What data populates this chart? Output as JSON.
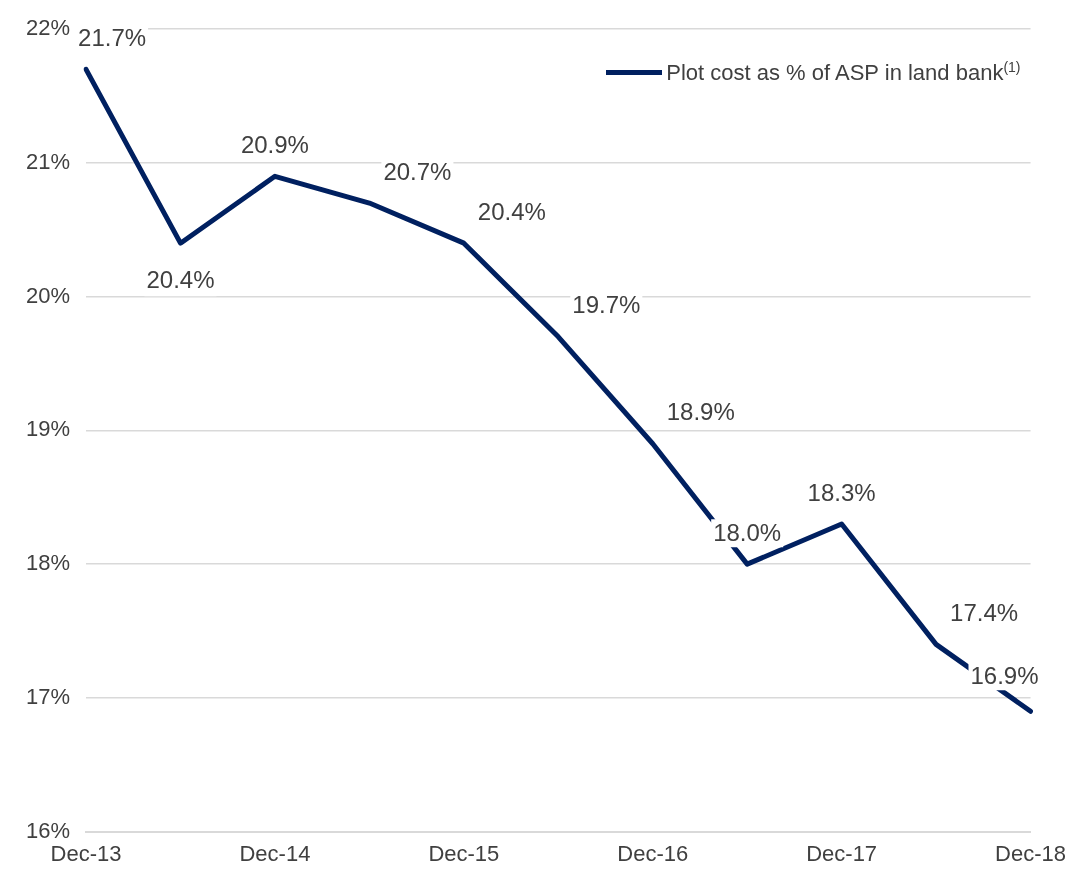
{
  "chart_data": {
    "type": "line",
    "categories": [
      "Dec-13",
      null,
      "Dec-14",
      null,
      "Dec-15",
      null,
      "Dec-16",
      null,
      "Dec-17",
      null,
      "Dec-18"
    ],
    "series": [
      {
        "name": "Plot cost as % of ASP in land bank$^{(1)}$",
        "color": "#002060",
        "values": [
          21.7,
          20.4,
          20.9,
          20.7,
          20.4,
          19.7,
          18.9,
          18.0,
          18.3,
          17.4,
          16.9
        ],
        "value_labels": [
          "21.7%",
          "20.4%",
          "20.9%",
          "20.7%",
          "20.4%",
          "19.7%",
          "18.9%",
          "18.0%",
          "18.3%",
          "17.4%",
          "16.9%"
        ]
      }
    ],
    "ylim": [
      16,
      22
    ],
    "yticks": [
      {
        "value": 16,
        "label": "16%"
      },
      {
        "value": 17,
        "label": "17%"
      },
      {
        "value": 18,
        "label": "18%"
      },
      {
        "value": 19,
        "label": "19%"
      },
      {
        "value": 20,
        "label": "20%"
      },
      {
        "value": 21,
        "label": "21%"
      },
      {
        "value": 22,
        "label": "22%"
      }
    ],
    "grid": "y",
    "legend": "top right",
    "marker": "none",
    "line_style": "solid"
  }
}
